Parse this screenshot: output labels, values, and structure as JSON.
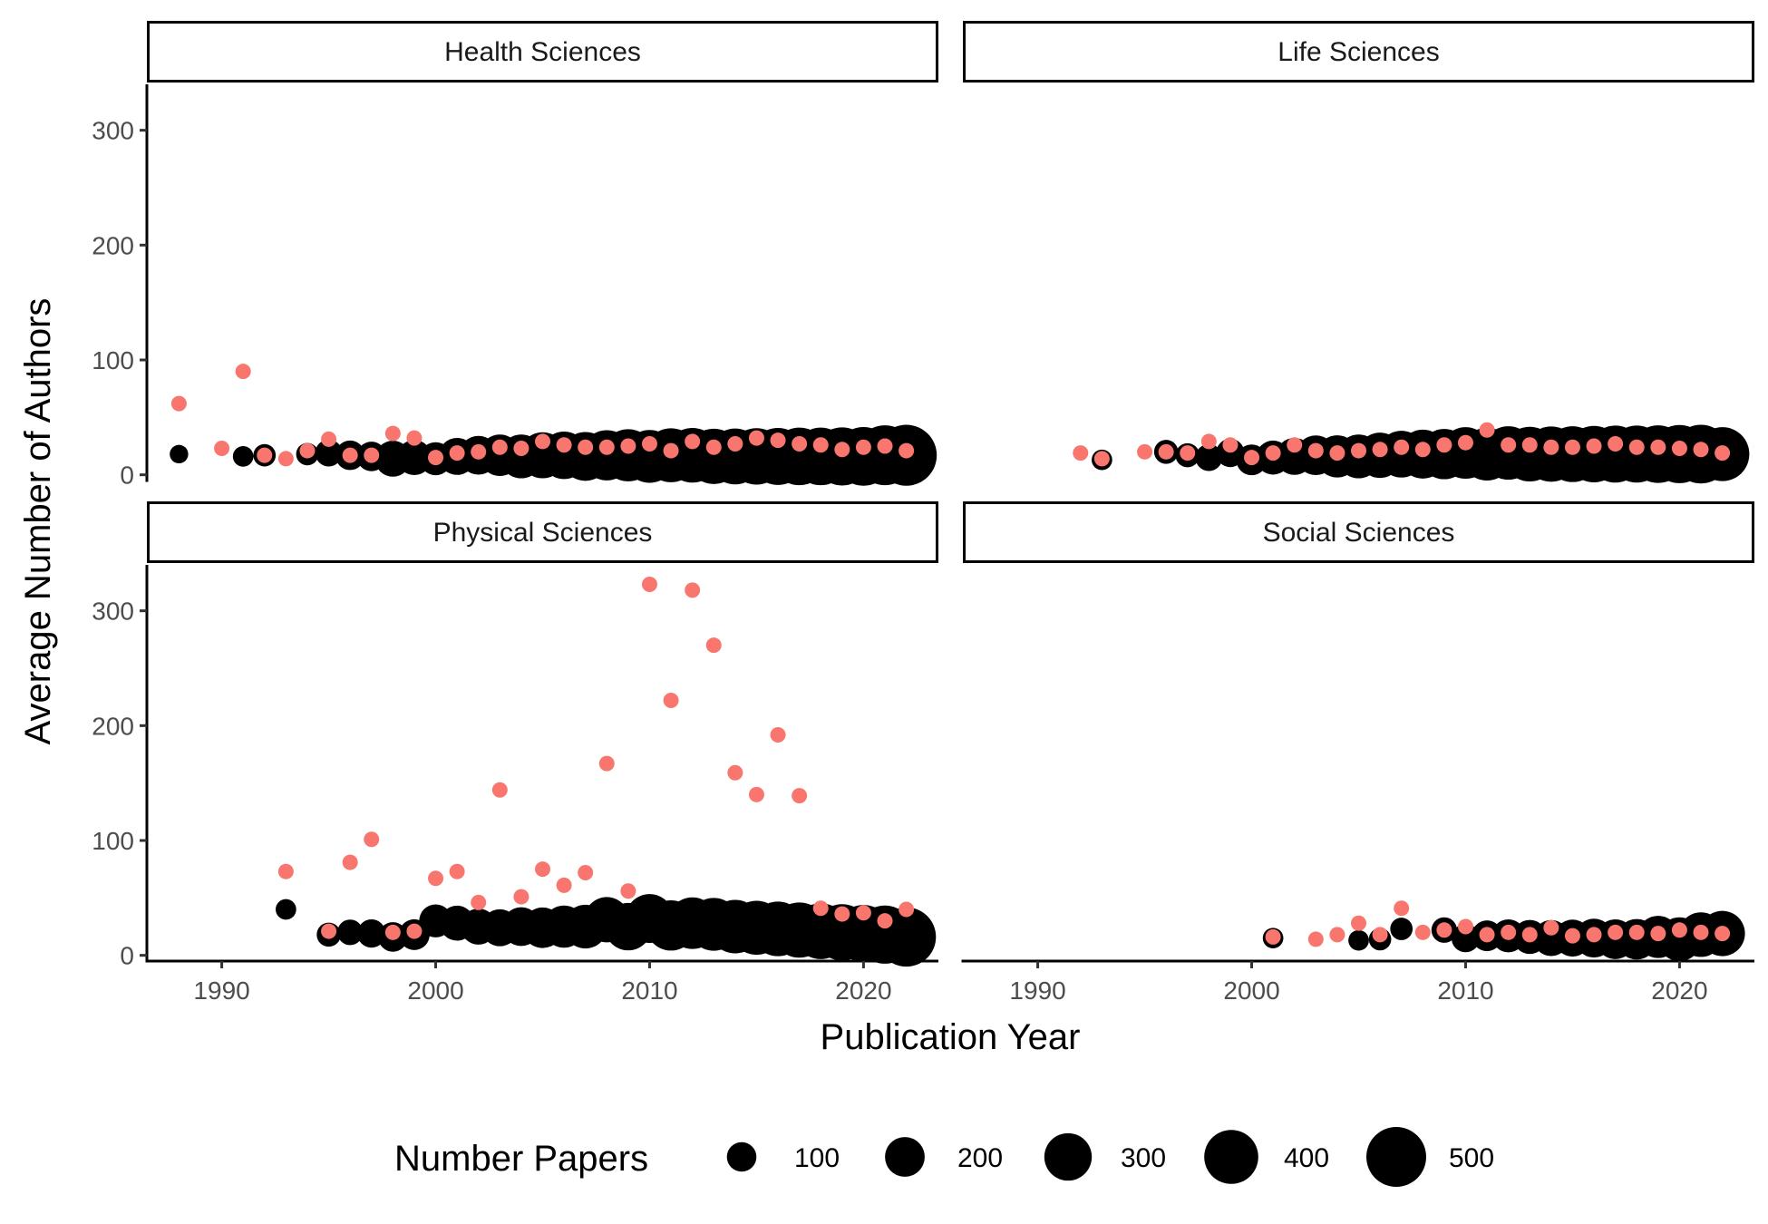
{
  "chart_data": {
    "type": "scatter",
    "xlabel": "Publication Year",
    "ylabel": "Average Number of Authors",
    "xlim": [
      1986.5,
      2023.5
    ],
    "ylim": [
      -5,
      340
    ],
    "x_ticks": [
      1990,
      2000,
      2010,
      2020
    ],
    "y_ticks": [
      0,
      100,
      200,
      300
    ],
    "grid": false,
    "colors": {
      "black_series": "#000000",
      "red_series": "#F8766D"
    },
    "legend": {
      "title": "Number Papers",
      "position": "bottom",
      "entries": [
        {
          "label": "100",
          "size_value": 100
        },
        {
          "label": "200",
          "size_value": 200
        },
        {
          "label": "300",
          "size_value": 300
        },
        {
          "label": "400",
          "size_value": 400
        },
        {
          "label": "500",
          "size_value": 500
        }
      ]
    },
    "facets": [
      {
        "label": "Health Sciences",
        "black": [
          [
            1988,
            18,
            30
          ],
          [
            1991,
            16,
            40
          ],
          [
            1992,
            17,
            50
          ],
          [
            1994,
            18,
            50
          ],
          [
            1995,
            19,
            80
          ],
          [
            1996,
            17,
            100
          ],
          [
            1997,
            16,
            100
          ],
          [
            1998,
            14,
            160
          ],
          [
            1999,
            15,
            150
          ],
          [
            2000,
            14,
            130
          ],
          [
            2001,
            16,
            170
          ],
          [
            2002,
            17,
            190
          ],
          [
            2003,
            17,
            220
          ],
          [
            2004,
            16,
            250
          ],
          [
            2005,
            17,
            280
          ],
          [
            2006,
            17,
            300
          ],
          [
            2007,
            16,
            320
          ],
          [
            2008,
            17,
            340
          ],
          [
            2009,
            17,
            370
          ],
          [
            2010,
            16,
            380
          ],
          [
            2011,
            17,
            400
          ],
          [
            2012,
            17,
            410
          ],
          [
            2013,
            16,
            420
          ],
          [
            2014,
            16,
            430
          ],
          [
            2015,
            16,
            440
          ],
          [
            2016,
            16,
            450
          ],
          [
            2017,
            16,
            460
          ],
          [
            2018,
            16,
            460
          ],
          [
            2019,
            16,
            470
          ],
          [
            2020,
            16,
            480
          ],
          [
            2021,
            17,
            500
          ],
          [
            2022,
            17,
            520
          ]
        ],
        "red": [
          [
            1988,
            62
          ],
          [
            1990,
            23
          ],
          [
            1991,
            90
          ],
          [
            1992,
            17
          ],
          [
            1993,
            14
          ],
          [
            1994,
            21
          ],
          [
            1995,
            31
          ],
          [
            1996,
            17
          ],
          [
            1997,
            17
          ],
          [
            1998,
            36
          ],
          [
            1999,
            32
          ],
          [
            2000,
            15
          ],
          [
            2001,
            19
          ],
          [
            2002,
            20
          ],
          [
            2003,
            24
          ],
          [
            2004,
            23
          ],
          [
            2005,
            29
          ],
          [
            2006,
            26
          ],
          [
            2007,
            24
          ],
          [
            2008,
            24
          ],
          [
            2009,
            25
          ],
          [
            2010,
            27
          ],
          [
            2011,
            21
          ],
          [
            2012,
            29
          ],
          [
            2013,
            24
          ],
          [
            2014,
            27
          ],
          [
            2015,
            32
          ],
          [
            2016,
            30
          ],
          [
            2017,
            27
          ],
          [
            2018,
            26
          ],
          [
            2019,
            22
          ],
          [
            2020,
            24
          ],
          [
            2021,
            25
          ],
          [
            2022,
            21
          ]
        ]
      },
      {
        "label": "Life Sciences",
        "black": [
          [
            1993,
            13,
            40
          ],
          [
            1996,
            20,
            60
          ],
          [
            1997,
            17,
            60
          ],
          [
            1998,
            15,
            80
          ],
          [
            1999,
            19,
            90
          ],
          [
            2000,
            13,
            110
          ],
          [
            2001,
            15,
            140
          ],
          [
            2002,
            16,
            170
          ],
          [
            2003,
            17,
            200
          ],
          [
            2004,
            16,
            230
          ],
          [
            2005,
            16,
            250
          ],
          [
            2006,
            17,
            270
          ],
          [
            2007,
            18,
            290
          ],
          [
            2008,
            18,
            320
          ],
          [
            2009,
            18,
            340
          ],
          [
            2010,
            19,
            360
          ],
          [
            2011,
            18,
            380
          ],
          [
            2012,
            19,
            390
          ],
          [
            2013,
            18,
            410
          ],
          [
            2014,
            18,
            420
          ],
          [
            2015,
            18,
            430
          ],
          [
            2016,
            18,
            440
          ],
          [
            2017,
            18,
            450
          ],
          [
            2018,
            18,
            450
          ],
          [
            2019,
            18,
            460
          ],
          [
            2020,
            18,
            470
          ],
          [
            2021,
            18,
            480
          ],
          [
            2022,
            18,
            400
          ]
        ],
        "red": [
          [
            1992,
            19
          ],
          [
            1993,
            14
          ],
          [
            1995,
            20
          ],
          [
            1996,
            20
          ],
          [
            1997,
            19
          ],
          [
            1998,
            29
          ],
          [
            1999,
            26
          ],
          [
            2000,
            15
          ],
          [
            2001,
            19
          ],
          [
            2002,
            26
          ],
          [
            2003,
            21
          ],
          [
            2004,
            19
          ],
          [
            2005,
            21
          ],
          [
            2006,
            22
          ],
          [
            2007,
            24
          ],
          [
            2008,
            22
          ],
          [
            2009,
            26
          ],
          [
            2010,
            28
          ],
          [
            2011,
            39
          ],
          [
            2012,
            26
          ],
          [
            2013,
            26
          ],
          [
            2014,
            24
          ],
          [
            2015,
            24
          ],
          [
            2016,
            25
          ],
          [
            2017,
            27
          ],
          [
            2018,
            24
          ],
          [
            2019,
            24
          ],
          [
            2020,
            23
          ],
          [
            2021,
            22
          ],
          [
            2022,
            19
          ]
        ]
      },
      {
        "label": "Physical Sciences",
        "black": [
          [
            1993,
            40,
            40
          ],
          [
            1995,
            18,
            60
          ],
          [
            1996,
            20,
            70
          ],
          [
            1997,
            19,
            90
          ],
          [
            1998,
            16,
            100
          ],
          [
            1999,
            18,
            110
          ],
          [
            2000,
            30,
            130
          ],
          [
            2001,
            28,
            150
          ],
          [
            2002,
            25,
            160
          ],
          [
            2003,
            24,
            170
          ],
          [
            2004,
            25,
            190
          ],
          [
            2005,
            24,
            210
          ],
          [
            2006,
            25,
            230
          ],
          [
            2007,
            25,
            250
          ],
          [
            2008,
            31,
            270
          ],
          [
            2009,
            25,
            300
          ],
          [
            2010,
            32,
            320
          ],
          [
            2011,
            26,
            340
          ],
          [
            2012,
            28,
            360
          ],
          [
            2013,
            27,
            380
          ],
          [
            2014,
            25,
            390
          ],
          [
            2015,
            24,
            400
          ],
          [
            2016,
            23,
            410
          ],
          [
            2017,
            22,
            420
          ],
          [
            2018,
            21,
            430
          ],
          [
            2019,
            20,
            440
          ],
          [
            2020,
            19,
            450
          ],
          [
            2021,
            18,
            470
          ],
          [
            2022,
            16,
            490
          ]
        ],
        "red": [
          [
            1993,
            73
          ],
          [
            1995,
            21
          ],
          [
            1996,
            81
          ],
          [
            1997,
            101
          ],
          [
            1998,
            20
          ],
          [
            1999,
            21
          ],
          [
            2000,
            67
          ],
          [
            2001,
            73
          ],
          [
            2002,
            46
          ],
          [
            2003,
            144
          ],
          [
            2004,
            51
          ],
          [
            2005,
            75
          ],
          [
            2006,
            61
          ],
          [
            2007,
            72
          ],
          [
            2008,
            167
          ],
          [
            2009,
            56
          ],
          [
            2010,
            323
          ],
          [
            2011,
            222
          ],
          [
            2012,
            318
          ],
          [
            2013,
            270
          ],
          [
            2014,
            159
          ],
          [
            2015,
            140
          ],
          [
            2016,
            192
          ],
          [
            2017,
            139
          ],
          [
            2018,
            41
          ],
          [
            2019,
            36
          ],
          [
            2020,
            37
          ],
          [
            2021,
            30
          ],
          [
            2022,
            40
          ]
        ]
      },
      {
        "label": "Social Sciences",
        "black": [
          [
            2001,
            15,
            40
          ],
          [
            2005,
            13,
            40
          ],
          [
            2006,
            14,
            50
          ],
          [
            2007,
            23,
            50
          ],
          [
            2009,
            22,
            70
          ],
          [
            2010,
            15,
            90
          ],
          [
            2011,
            17,
            110
          ],
          [
            2012,
            17,
            130
          ],
          [
            2013,
            16,
            140
          ],
          [
            2014,
            15,
            160
          ],
          [
            2015,
            15,
            170
          ],
          [
            2016,
            15,
            190
          ],
          [
            2017,
            14,
            200
          ],
          [
            2018,
            14,
            210
          ],
          [
            2019,
            16,
            230
          ],
          [
            2020,
            14,
            250
          ],
          [
            2021,
            18,
            260
          ],
          [
            2022,
            19,
            270
          ]
        ],
        "red": [
          [
            2001,
            16
          ],
          [
            2003,
            14
          ],
          [
            2004,
            18
          ],
          [
            2005,
            28
          ],
          [
            2006,
            18
          ],
          [
            2007,
            41
          ],
          [
            2008,
            20
          ],
          [
            2009,
            22
          ],
          [
            2010,
            25
          ],
          [
            2011,
            18
          ],
          [
            2012,
            20
          ],
          [
            2013,
            18
          ],
          [
            2014,
            24
          ],
          [
            2015,
            17
          ],
          [
            2016,
            18
          ],
          [
            2017,
            20
          ],
          [
            2018,
            20
          ],
          [
            2019,
            19
          ],
          [
            2020,
            22
          ],
          [
            2021,
            20
          ],
          [
            2022,
            19
          ]
        ]
      }
    ]
  }
}
